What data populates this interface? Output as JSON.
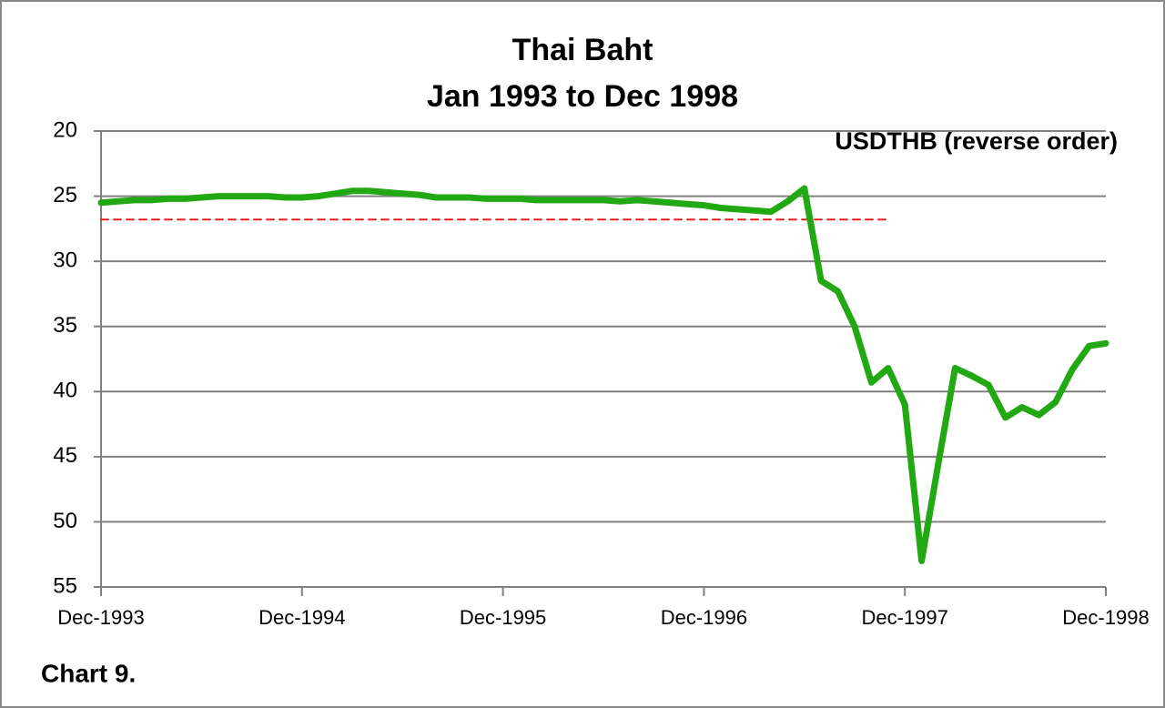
{
  "chart_data": {
    "type": "line",
    "title": "Thai Baht",
    "subtitle": "Jan 1993 to Dec 1998",
    "note": "Chart 9.",
    "reversed": true,
    "grid": true,
    "ylim": [
      20,
      55
    ],
    "yticks": [
      20,
      25,
      30,
      35,
      40,
      45,
      50,
      55
    ],
    "categories": [
      "Dec-1993",
      null,
      null,
      null,
      null,
      null,
      null,
      null,
      null,
      null,
      null,
      null,
      "Dec-1994",
      null,
      null,
      null,
      null,
      null,
      null,
      null,
      null,
      null,
      null,
      null,
      "Dec-1995",
      null,
      null,
      null,
      null,
      null,
      null,
      null,
      null,
      null,
      null,
      null,
      "Dec-1996",
      null,
      null,
      null,
      null,
      null,
      null,
      null,
      null,
      null,
      null,
      null,
      "Dec-1997",
      null,
      null,
      null,
      null,
      null,
      null,
      null,
      null,
      null,
      null,
      null,
      "Dec-1998"
    ],
    "series": [
      {
        "name": "USDTHB (reverse order)",
        "color": "#22a812",
        "width": 7,
        "dash": false,
        "values": [
          25.5,
          25.4,
          25.3,
          25.3,
          25.2,
          25.2,
          25.1,
          25.0,
          25.0,
          25.0,
          25.0,
          25.1,
          25.1,
          25.0,
          24.8,
          24.6,
          24.6,
          24.7,
          24.8,
          24.9,
          25.1,
          25.1,
          25.1,
          25.2,
          25.2,
          25.2,
          25.3,
          25.3,
          25.3,
          25.3,
          25.3,
          25.4,
          25.3,
          25.4,
          25.5,
          25.6,
          25.7,
          25.9,
          26.0,
          26.1,
          26.2,
          25.4,
          24.4,
          31.5,
          32.3,
          35.0,
          39.3,
          38.2,
          41.0,
          53.0,
          45.5,
          38.2,
          38.8,
          39.5,
          42.0,
          41.2,
          41.8,
          40.8,
          38.3,
          36.5,
          36.3
        ]
      },
      {
        "color": "#e02020",
        "width": 2,
        "dash": true,
        "values": [
          26.8,
          26.8,
          26.8,
          26.8,
          26.8,
          26.8,
          26.8,
          26.8,
          26.8,
          26.8,
          26.8,
          26.8,
          26.8,
          26.8,
          26.8,
          26.8,
          26.8,
          26.8,
          26.8,
          26.8,
          26.8,
          26.8,
          26.8,
          26.8,
          26.8,
          26.8,
          26.8,
          26.8,
          26.8,
          26.8,
          26.8,
          26.8,
          26.8,
          26.8,
          26.8,
          26.8,
          26.8,
          26.8,
          26.8,
          26.8,
          26.8,
          26.8,
          26.8,
          26.8,
          26.8,
          26.8,
          26.8,
          26.8,
          null,
          null,
          null,
          null,
          null,
          null,
          null,
          null,
          null,
          null,
          null,
          null,
          null
        ]
      }
    ]
  }
}
